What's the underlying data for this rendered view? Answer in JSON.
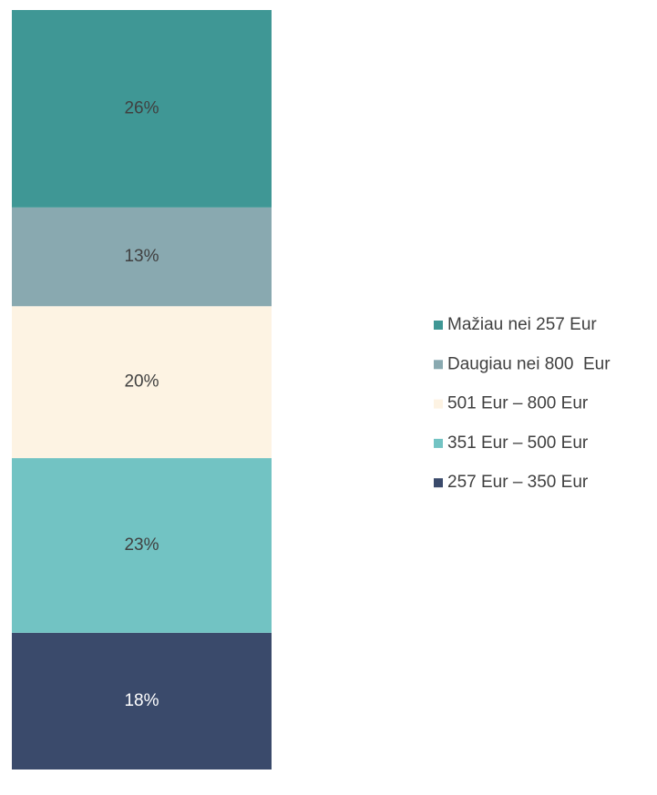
{
  "chart_data": {
    "type": "bar",
    "stacked": true,
    "categories": [
      null
    ],
    "ylim": [
      0,
      100
    ],
    "legend": "right",
    "series": [
      {
        "name": "257 Eur – 350 Eur",
        "color": "#3a4a6b",
        "values": [
          18
        ],
        "value_labels": [
          "18%"
        ]
      },
      {
        "name": "351 Eur – 500 Eur",
        "color": "#72c3c3",
        "values": [
          23
        ],
        "value_labels": [
          "23%"
        ]
      },
      {
        "name": "501 Eur – 800 Eur",
        "color": "#fdf3e3",
        "values": [
          20
        ],
        "value_labels": [
          "20%"
        ]
      },
      {
        "name": "Daugiau nei 800  Eur",
        "color": "#89a9b0",
        "values": [
          13
        ],
        "value_labels": [
          "13%"
        ]
      },
      {
        "name": "Mažiau nei 257 Eur",
        "color": "#3f9795",
        "values": [
          26
        ],
        "value_labels": [
          "26%"
        ]
      }
    ]
  }
}
